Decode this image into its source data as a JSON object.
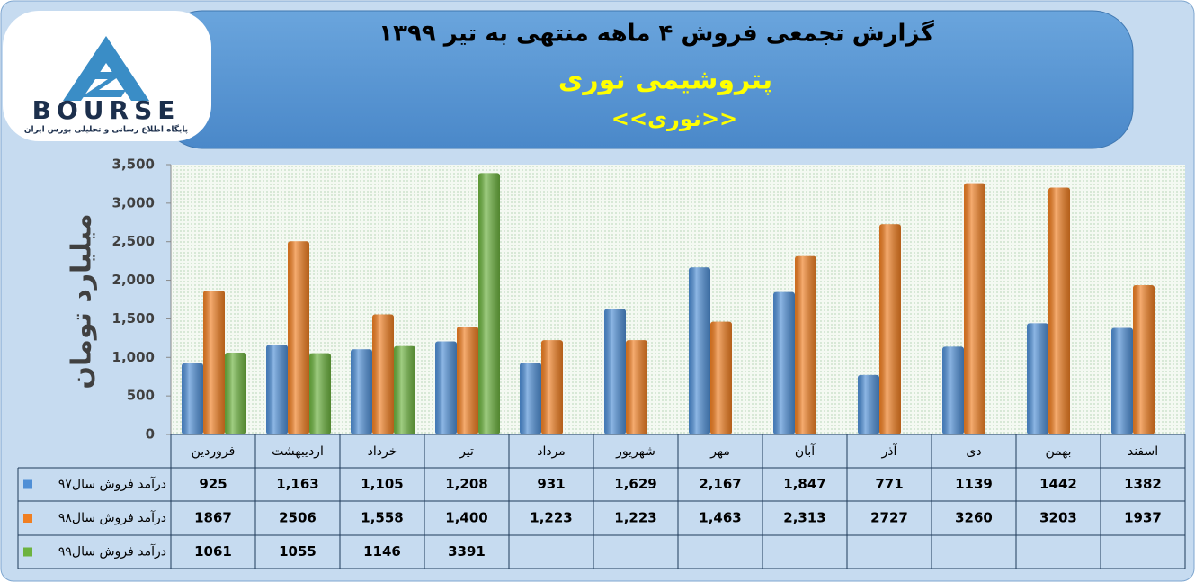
{
  "logo": {
    "name": "BOURSE",
    "tagline": "پایگاه اطلاع رسانی و تحلیلی بورس ایران"
  },
  "chart_data": {
    "type": "bar",
    "title": "گزارش تجمعی فروش ۴ ماهه منتهی به تیر ۱۳۹۹",
    "subtitle": "پتروشیمی نوری",
    "ticker": "<<نوری>>",
    "y_label": "میلیارد تومان",
    "categories": [
      "فروردین",
      "اردیبهشت",
      "خرداد",
      "تیر",
      "مرداد",
      "شهریور",
      "مهر",
      "آبان",
      "آذر",
      "دی",
      "بهمن",
      "اسفند"
    ],
    "series": [
      {
        "name": "درآمد فروش سال۹۷",
        "color": "#4f8fd6",
        "values": [
          925,
          1163,
          1105,
          1208,
          931,
          1629,
          2167,
          1847,
          771,
          1139,
          1442,
          1382
        ],
        "value_labels": [
          "925",
          "1,163",
          "1,105",
          "1,208",
          "931",
          "1,629",
          "2,167",
          "1,847",
          "771",
          "1139",
          "1442",
          "1382"
        ]
      },
      {
        "name": "درآمد فروش سال۹۸",
        "color": "#f07f22",
        "values": [
          1867,
          2506,
          1558,
          1400,
          1223,
          1223,
          1463,
          2313,
          2727,
          3260,
          3203,
          1937
        ],
        "value_labels": [
          "1867",
          "2506",
          "1,558",
          "1,400",
          "1,223",
          "1,223",
          "1,463",
          "2,313",
          "2727",
          "3260",
          "3203",
          "1937"
        ]
      },
      {
        "name": "درآمد فروش سال۹۹",
        "color": "#6db33f",
        "values": [
          1061,
          1055,
          1146,
          3391,
          null,
          null,
          null,
          null,
          null,
          null,
          null,
          null
        ],
        "value_labels": [
          "1061",
          "1055",
          "1146",
          "3391",
          null,
          null,
          null,
          null,
          null,
          null,
          null,
          null
        ]
      }
    ],
    "ylim": [
      0,
      3500
    ],
    "yticks": [
      0,
      500,
      {
        "value": 1000,
        "label": "1,000"
      },
      {
        "value": 1500,
        "label": "1,500"
      },
      {
        "value": 2000,
        "label": "2,000"
      },
      {
        "value": 2500,
        "label": "2,500"
      },
      {
        "value": 3000,
        "label": "3,000"
      },
      {
        "value": 3500,
        "label": "3,500"
      }
    ]
  }
}
